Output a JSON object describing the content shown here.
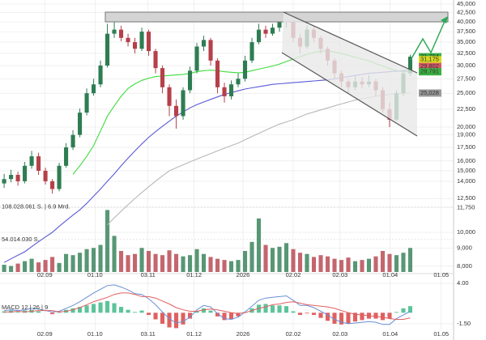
{
  "chart_data": {
    "type": "candlestick",
    "log_scale": true,
    "grid": true,
    "x": [
      0,
      1,
      2,
      3,
      4,
      5,
      6,
      7,
      8,
      9,
      10,
      11,
      12,
      13,
      14,
      15,
      16,
      17,
      18,
      19,
      20,
      21,
      22,
      23,
      24,
      25,
      26,
      27,
      28,
      29,
      30,
      31,
      32,
      33,
      34,
      35,
      36,
      37,
      38,
      39,
      40,
      41,
      42,
      43,
      44,
      45,
      46,
      47,
      48,
      49,
      50,
      51,
      52,
      53,
      54,
      55,
      56,
      57,
      58,
      59
    ],
    "open": [
      13800,
      14200,
      14600,
      14000,
      15500,
      16500,
      15000,
      14000,
      13300,
      15500,
      17500,
      19000,
      22000,
      25000,
      26500,
      30000,
      37000,
      38000,
      36000,
      35000,
      33500,
      37500,
      33000,
      29500,
      26000,
      23000,
      21500,
      25500,
      29000,
      34000,
      35500,
      31000,
      26000,
      24500,
      26500,
      27500,
      31000,
      35000,
      38000,
      37000,
      38500,
      40000,
      40500,
      36000,
      34000,
      38000,
      36000,
      33500,
      31000,
      28500,
      27000,
      26000,
      27000,
      26500,
      27000,
      25500,
      22500,
      21000,
      25000,
      28500
    ],
    "high": [
      14700,
      15100,
      14900,
      15900,
      17100,
      16900,
      15300,
      14200,
      15800,
      18000,
      19600,
      22600,
      25800,
      27500,
      31000,
      39500,
      40000,
      39000,
      37000,
      36000,
      38500,
      38000,
      33500,
      30000,
      26500,
      24000,
      26000,
      29800,
      34800,
      36500,
      36000,
      31500,
      26800,
      27200,
      28500,
      32000,
      36000,
      39500,
      39000,
      39500,
      41500,
      42800,
      41000,
      37000,
      39000,
      38800,
      36500,
      34000,
      31500,
      29000,
      27500,
      28000,
      27800,
      28200,
      27500,
      26000,
      23500,
      25500,
      29000,
      32200
    ],
    "low": [
      13400,
      13900,
      13600,
      13800,
      15200,
      14600,
      13700,
      12900,
      13100,
      15300,
      17200,
      18700,
      21600,
      24600,
      26000,
      29600,
      36000,
      35200,
      34000,
      32500,
      33000,
      32000,
      28500,
      25000,
      21500,
      19800,
      21000,
      25000,
      28500,
      33000,
      30000,
      25000,
      23500,
      24000,
      26000,
      27000,
      30500,
      34500,
      36000,
      36500,
      37500,
      38500,
      35000,
      32500,
      33500,
      35000,
      32500,
      30000,
      27500,
      26000,
      25000,
      25500,
      25800,
      26000,
      24500,
      22000,
      20000,
      20800,
      24500,
      28000
    ],
    "close": [
      14200,
      14600,
      14000,
      15500,
      16500,
      15000,
      14000,
      13300,
      15500,
      17500,
      19000,
      22000,
      25000,
      26500,
      30000,
      37000,
      38000,
      36000,
      35000,
      33500,
      37500,
      33000,
      29500,
      26000,
      23000,
      21500,
      25500,
      29000,
      34000,
      35500,
      31000,
      26000,
      24500,
      26500,
      27500,
      31000,
      35000,
      38000,
      37000,
      38500,
      40000,
      40500,
      36000,
      34000,
      38000,
      36000,
      33500,
      31000,
      28500,
      27000,
      26000,
      27000,
      26500,
      27000,
      25500,
      22500,
      21000,
      25000,
      28500,
      31794
    ],
    "up_color": "#2e7d52",
    "down_color": "#b5404a",
    "volume": [
      12000000,
      10000000,
      14000000,
      18000000,
      22000000,
      16000000,
      20000000,
      25000000,
      15000000,
      30000000,
      28000000,
      32000000,
      38000000,
      40000000,
      45000000,
      103000000,
      60000000,
      35000000,
      28000000,
      30000000,
      40000000,
      35000000,
      30000000,
      28000000,
      36000000,
      30000000,
      26000000,
      28000000,
      38000000,
      30000000,
      25000000,
      22000000,
      20000000,
      18000000,
      20000000,
      35000000,
      50000000,
      89000000,
      45000000,
      40000000,
      42000000,
      48000000,
      38000000,
      32000000,
      30000000,
      25000000,
      28000000,
      26000000,
      22000000,
      20000000,
      24000000,
      18000000,
      20000000,
      22000000,
      26000000,
      35000000,
      30000000,
      28000000,
      32000000,
      40000000
    ],
    "lines": [
      {
        "color": "#3ddc3d",
        "values": [
          null,
          null,
          null,
          null,
          null,
          null,
          null,
          null,
          null,
          null,
          14650,
          15500,
          16500,
          17700,
          19500,
          21500,
          23000,
          24500,
          25800,
          26600,
          27200,
          27600,
          27900,
          28000,
          28100,
          28200,
          28300,
          28500,
          28800,
          29000,
          29100,
          29000,
          28800,
          28700,
          28600,
          28700,
          29000,
          29300,
          29600,
          29900,
          30300,
          30800,
          31300,
          31800,
          32300,
          32700,
          33000,
          33000,
          32800,
          32500,
          32100,
          31700,
          31300,
          30900,
          30400,
          29900,
          29400,
          29000,
          28800,
          28791
        ]
      },
      {
        "color": "#5a5ad6",
        "values": [
          8200,
          8400,
          8600,
          8800,
          9100,
          9400,
          9700,
          10000,
          10400,
          10800,
          11200,
          11600,
          12100,
          12700,
          13300,
          14000,
          14700,
          15500,
          16300,
          17100,
          17900,
          18700,
          19400,
          20100,
          20800,
          21500,
          22100,
          22700,
          23200,
          23600,
          24000,
          24400,
          24800,
          25100,
          25400,
          25700,
          25900,
          26100,
          26300,
          26500,
          26600,
          26700,
          26800,
          26900,
          27000,
          27100,
          27200,
          27300,
          27500,
          27700,
          27900,
          28100,
          28300,
          28500,
          28600,
          28700,
          28800,
          28900,
          29000,
          29100
        ]
      },
      {
        "color": "#b8b8b8",
        "values": [
          null,
          null,
          null,
          null,
          null,
          null,
          null,
          null,
          null,
          null,
          null,
          null,
          null,
          null,
          null,
          10500,
          11000,
          11500,
          12000,
          12500,
          13000,
          13500,
          14000,
          14500,
          15000,
          15300,
          15600,
          15900,
          16200,
          16500,
          16800,
          17100,
          17400,
          17700,
          18000,
          18400,
          18800,
          19200,
          19600,
          20000,
          20400,
          20700,
          21000,
          21400,
          21800,
          22100,
          22400,
          22700,
          23000,
          23300,
          23600,
          23900,
          24100,
          24300,
          24500,
          24700,
          24800,
          24900,
          25000,
          25028
        ]
      }
    ],
    "xlim": [
      -0.6,
      65.3
    ],
    "xticks": [
      {
        "value": 5.9,
        "label": "02.09"
      },
      {
        "value": 13.2,
        "label": "01.10"
      },
      {
        "value": 20.9,
        "label": "03.11"
      },
      {
        "value": 27.6,
        "label": "01.12"
      },
      {
        "value": 34.7,
        "label": "2026"
      },
      {
        "value": 42,
        "label": "02.02"
      },
      {
        "value": 48.8,
        "label": "02.03"
      },
      {
        "value": 56.1,
        "label": "01.04"
      },
      {
        "value": 63.5,
        "label": "01.05"
      }
    ],
    "ylim": [
      7700,
      46200
    ],
    "yticks": [
      {
        "value": 45000,
        "label": "45,000"
      },
      {
        "value": 42500,
        "label": "42,500"
      },
      {
        "value": 40000,
        "label": "40,000"
      },
      {
        "value": 37500,
        "label": "37,500"
      },
      {
        "value": 35000,
        "label": "35,000"
      },
      {
        "value": 32500,
        "label": "32,500"
      },
      {
        "value": 30000,
        "label": "30,000"
      },
      {
        "value": 27500,
        "label": "27,500"
      },
      {
        "value": 25000,
        "label": "25,000"
      },
      {
        "value": 22500,
        "label": "22,500"
      },
      {
        "value": 20000,
        "label": "20,000"
      },
      {
        "value": 19000,
        "label": "19,000"
      },
      {
        "value": 17500,
        "label": "17,500"
      },
      {
        "value": 16000,
        "label": "16,000"
      },
      {
        "value": 15000,
        "label": "15,000"
      },
      {
        "value": 14000,
        "label": "14,000"
      },
      {
        "value": 12500,
        "label": "12,500"
      },
      {
        "value": 11750,
        "label": "11,750"
      },
      {
        "value": 10000,
        "label": "10,000"
      },
      {
        "value": 9000,
        "label": "9,000"
      },
      {
        "value": 8000,
        "label": "8,000"
      }
    ],
    "y2lim": [
      0,
      452000000
    ],
    "y2ticks": [
      {
        "value": 54014030,
        "label": "54.014.030 S."
      },
      {
        "value": 108028061,
        "label": "108.028.061 S. | 6.9 Mrd."
      }
    ],
    "price_tags": [
      {
        "value": 31794,
        "label": "31,794",
        "color": "#3cb043"
      },
      {
        "value": 31175,
        "label": "31,175",
        "color": "#d8d820"
      },
      {
        "value": 29802,
        "label": "29,802",
        "color": "#d85a6a"
      },
      {
        "value": 28791,
        "label": "28,791",
        "color": "#3cb043"
      },
      {
        "value": 25028,
        "label": "25,028",
        "color": "#9a9a9a"
      }
    ],
    "macd": {
      "title": "MACD 12 | 26 | 9",
      "ylim": [
        -2.5,
        5
      ],
      "yticks": [
        {
          "value": 4,
          "label": "4.00"
        },
        {
          "value": -1.5,
          "label": "-1.50"
        }
      ],
      "hist": [
        0.2,
        0.3,
        0.1,
        0.3,
        0.4,
        0.2,
        0,
        -0.2,
        0.1,
        0.4,
        0.6,
        0.8,
        1.0,
        1.2,
        1.4,
        1.6,
        1.3,
        0.8,
        0.4,
        0.1,
        0.3,
        -0.3,
        -0.9,
        -1.5,
        -2.0,
        -2.1,
        -1.6,
        -0.8,
        0.2,
        0.6,
        0.3,
        -0.5,
        -1.0,
        -0.9,
        -0.5,
        0.1,
        0.6,
        1.1,
        1.2,
        1.0,
        1.0,
        0.9,
        0.2,
        -0.3,
        -0.1,
        -0.3,
        -0.7,
        -1.1,
        -1.5,
        -1.6,
        -1.5,
        -1.2,
        -1.0,
        -0.8,
        -0.8,
        -1.0,
        -0.8,
        0.1,
        0.6,
        0.9
      ],
      "macd": [
        0.3,
        0.4,
        0.3,
        0.4,
        0.6,
        0.5,
        0.3,
        0.1,
        0.2,
        0.6,
        1.0,
        1.5,
        2.1,
        2.7,
        3.2,
        3.7,
        3.8,
        3.5,
        3.1,
        2.6,
        2.5,
        1.9,
        1.1,
        0.1,
        -0.8,
        -1.4,
        -1.2,
        -0.6,
        0.4,
        1.0,
        0.8,
        -0.1,
        -0.8,
        -0.9,
        -0.6,
        0.1,
        0.9,
        1.7,
        2.0,
        2.1,
        2.2,
        2.3,
        1.7,
        1.0,
        1.0,
        0.7,
        0.2,
        -0.3,
        -0.9,
        -1.3,
        -1.5,
        -1.4,
        -1.3,
        -1.2,
        -1.3,
        -1.6,
        -1.6,
        -0.8,
        -0.3,
        0.2
      ],
      "signal": [
        0.1,
        0.1,
        0.2,
        0.1,
        0.2,
        0.3,
        0.3,
        0.3,
        0.1,
        0.2,
        0.4,
        0.7,
        1.1,
        1.5,
        1.8,
        2.1,
        2.5,
        2.7,
        2.7,
        2.5,
        2.2,
        2.2,
        2.0,
        1.6,
        1.2,
        0.7,
        0.4,
        0.2,
        0.2,
        0.4,
        0.5,
        0.4,
        0.2,
        0,
        -0.1,
        0,
        0.3,
        0.6,
        0.8,
        1.1,
        1.2,
        1.4,
        1.5,
        1.3,
        1.1,
        1.0,
        0.9,
        0.8,
        0.6,
        0.3,
        0,
        -0.2,
        -0.3,
        -0.4,
        -0.5,
        -0.6,
        -0.8,
        -0.9,
        -0.9,
        -0.7
      ],
      "macd_color": "#6a8fd6",
      "signal_color": "#e06060",
      "pos_color": "#5cc49a",
      "neg_color": "#e06060"
    }
  }
}
